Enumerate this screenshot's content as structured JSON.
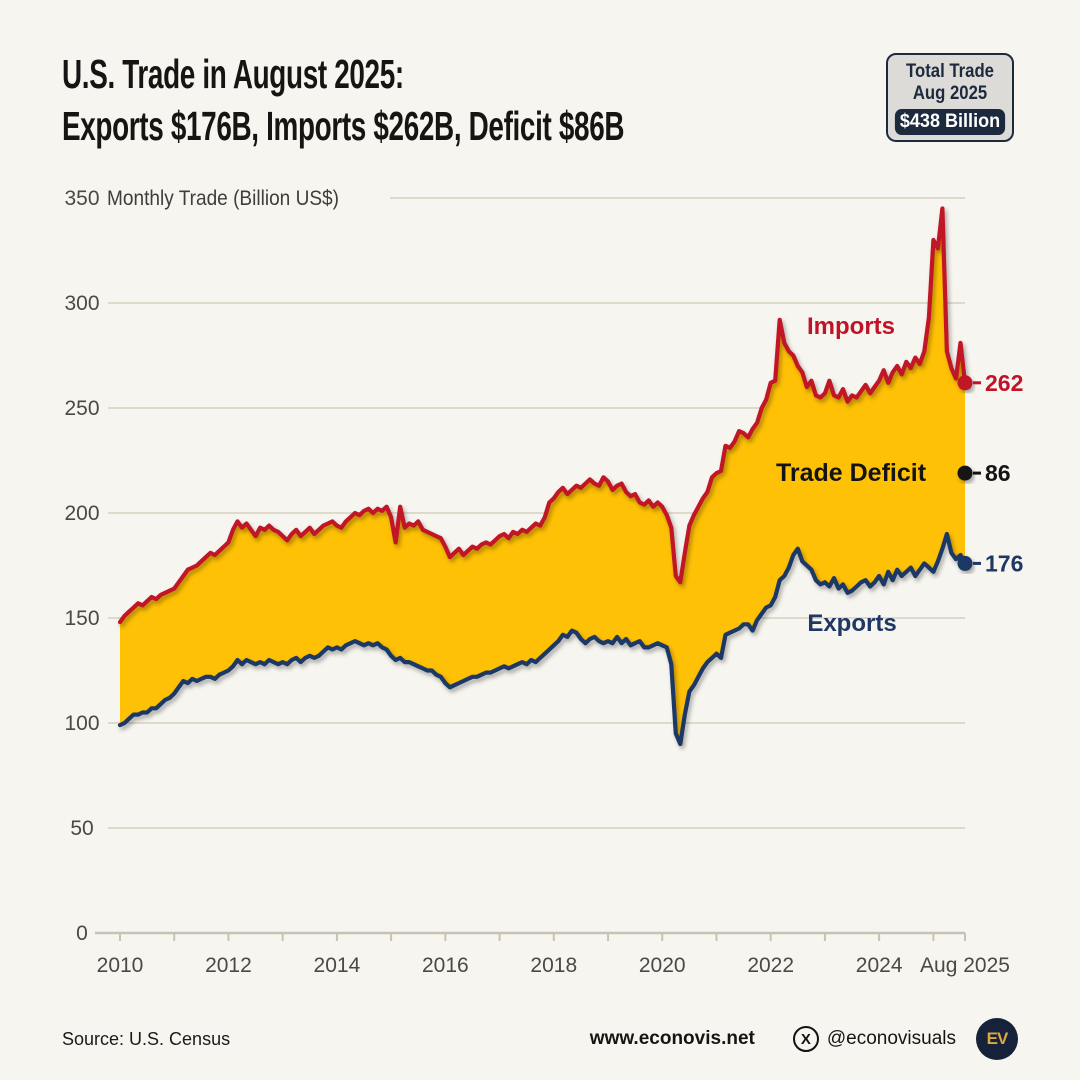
{
  "header": {
    "title_line1": "U.S. Trade in August 2025:",
    "title_line2": "Exports $176B, Imports $262B, Deficit $86B"
  },
  "total_trade_badge": {
    "line1": "Total Trade",
    "line2": "Aug 2025",
    "value": "$438 Billion"
  },
  "chart_data": {
    "type": "area",
    "title": "Monthly Trade (Billion US$)",
    "x_start": "2010-01",
    "x_end": "2025-08",
    "x_freq": "monthly",
    "x_tick_labels": [
      "2010",
      "2012",
      "2014",
      "2016",
      "2018",
      "2020",
      "2022",
      "2024",
      "Aug 2025"
    ],
    "ylim": [
      0,
      350
    ],
    "y_ticks": [
      0,
      50,
      100,
      150,
      200,
      250,
      300,
      350
    ],
    "grid": "on",
    "fill_between_label": "Trade Deficit",
    "deficit": {
      "label": "Trade Deficit",
      "value": 86
    },
    "series": [
      {
        "name": "Imports",
        "color": "#C11327",
        "end_value": 262,
        "values": [
          148,
          151,
          153,
          155,
          157,
          156,
          158,
          160,
          159,
          161,
          162,
          163,
          164,
          167,
          170,
          173,
          174,
          175,
          177,
          179,
          181,
          180,
          182,
          184,
          186,
          192,
          196,
          193,
          195,
          192,
          189,
          193,
          192,
          194,
          192,
          191,
          189,
          187,
          190,
          192,
          189,
          191,
          193,
          190,
          192,
          194,
          195,
          196,
          194,
          193,
          196,
          198,
          200,
          199,
          201,
          202,
          200,
          202,
          201,
          203,
          198,
          186,
          203,
          193,
          195,
          194,
          196,
          192,
          191,
          190,
          189,
          188,
          184,
          179,
          181,
          183,
          180,
          182,
          184,
          183,
          185,
          186,
          185,
          187,
          189,
          190,
          188,
          191,
          190,
          192,
          191,
          193,
          195,
          194,
          198,
          205,
          207,
          210,
          212,
          209,
          211,
          213,
          212,
          214,
          216,
          214,
          213,
          217,
          215,
          211,
          213,
          214,
          210,
          208,
          209,
          205,
          204,
          206,
          203,
          205,
          203,
          199,
          193,
          170,
          167,
          181,
          194,
          199,
          203,
          207,
          210,
          217,
          219,
          220,
          232,
          231,
          234,
          239,
          238,
          236,
          240,
          243,
          250,
          254,
          262,
          263,
          292,
          281,
          277,
          275,
          270,
          267,
          260,
          263,
          256,
          255,
          257,
          263,
          256,
          255,
          259,
          253,
          256,
          255,
          258,
          261,
          257,
          260,
          263,
          268,
          262,
          267,
          270,
          266,
          272,
          269,
          274,
          271,
          277,
          293,
          330,
          326,
          345,
          277,
          269,
          264,
          281,
          262
        ]
      },
      {
        "name": "Exports",
        "color": "#1E3765",
        "end_value": 176,
        "values": [
          99,
          100,
          102,
          104,
          104,
          105,
          105,
          107,
          107,
          109,
          111,
          112,
          114,
          117,
          120,
          119,
          121,
          120,
          121,
          122,
          122,
          121,
          123,
          124,
          125,
          127,
          130,
          128,
          130,
          129,
          128,
          129,
          128,
          130,
          129,
          128,
          129,
          128,
          130,
          131,
          129,
          131,
          132,
          131,
          132,
          134,
          136,
          135,
          136,
          135,
          137,
          138,
          139,
          138,
          137,
          138,
          137,
          138,
          136,
          135,
          132,
          130,
          131,
          129,
          129,
          128,
          127,
          126,
          125,
          125,
          123,
          122,
          119,
          117,
          118,
          119,
          120,
          121,
          122,
          122,
          123,
          124,
          124,
          125,
          126,
          127,
          126,
          127,
          128,
          129,
          128,
          130,
          129,
          131,
          133,
          135,
          137,
          139,
          142,
          141,
          144,
          143,
          140,
          138,
          140,
          141,
          139,
          138,
          139,
          138,
          141,
          138,
          140,
          137,
          138,
          139,
          136,
          136,
          137,
          138,
          137,
          136,
          128,
          95,
          90,
          104,
          115,
          118,
          122,
          126,
          129,
          131,
          133,
          131,
          142,
          143,
          144,
          145,
          147,
          147,
          144,
          149,
          152,
          155,
          156,
          160,
          168,
          170,
          174,
          180,
          183,
          177,
          175,
          173,
          168,
          166,
          167,
          165,
          169,
          164,
          166,
          162,
          163,
          165,
          167,
          168,
          165,
          167,
          170,
          166,
          172,
          168,
          173,
          170,
          172,
          174,
          170,
          173,
          176,
          174,
          172,
          177,
          183,
          190,
          181,
          178,
          180,
          176
        ]
      }
    ],
    "fill_color": "#FFC105",
    "colors": {
      "background": "#F7F5EF",
      "grid": "#DFD9CC",
      "axis": "#C8C2B4",
      "tick_text": "#4B4945",
      "dark_text": "#141414"
    }
  },
  "footer": {
    "source": "Source: U.S. Census",
    "website": "www.econovis.net",
    "x_glyph": "X",
    "social_handle": "@econovisuals",
    "logo_text": "EV"
  }
}
